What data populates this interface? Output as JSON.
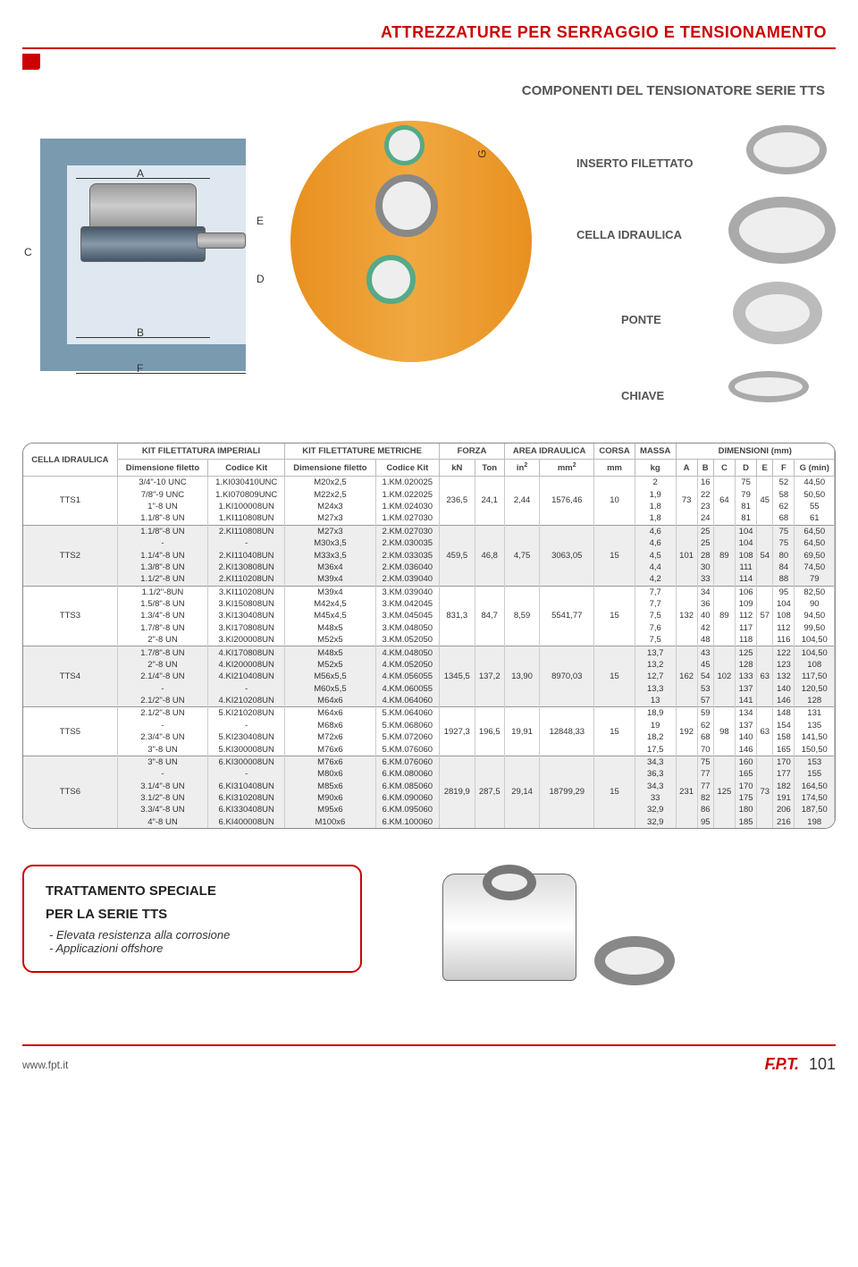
{
  "header": {
    "title": "ATTREZZATURE PER SERRAGGIO E TENSIONAMENTO"
  },
  "subtitle": "COMPONENTI DEL TENSIONATORE SERIE TTS",
  "diagram": {
    "dim_labels": {
      "A": "A",
      "B": "B",
      "C": "C",
      "D": "D",
      "E": "E",
      "F": "F",
      "G": "G"
    },
    "components": {
      "insert": "INSERTO FILETTATO",
      "cell": "CELLA IDRAULICA",
      "bridge": "PONTE",
      "key": "CHIAVE"
    }
  },
  "table": {
    "head1": {
      "cell": "CELLA IDRAULICA",
      "kit_imp": "KIT FILETTATURA IMPERIALI",
      "kit_met": "KIT FILETTATURE METRICHE",
      "force": "FORZA",
      "area": "AREA IDRAULICA",
      "stroke": "CORSA",
      "mass": "MASSA",
      "dims": "DIMENSIONI (mm)"
    },
    "head2": {
      "dim_fil": "Dimensione filetto",
      "cod_kit": "Codice Kit",
      "kN": "kN",
      "Ton": "Ton",
      "in2": "in",
      "mm2": "mm",
      "mm": "mm",
      "kg": "kg",
      "A": "A",
      "B": "B",
      "C": "C",
      "D": "D",
      "E": "E",
      "F": "F",
      "G": "G (min)"
    },
    "groups": [
      {
        "cell": "TTS1",
        "cls": "group-odd",
        "kN": "236,5",
        "Ton": "24,1",
        "in2": "2,44",
        "mm2": "1576,46",
        "stroke": "10",
        "A": "73",
        "C": "64",
        "E": "45",
        "rows": [
          [
            "3/4\"-10 UNC",
            "1.KI030410UNC",
            "M20x2,5",
            "1.KM.020025",
            "2",
            "16",
            "75",
            "52",
            "44,50"
          ],
          [
            "7/8\"-9 UNC",
            "1.KI070809UNC",
            "M22x2,5",
            "1.KM.022025",
            "1,9",
            "22",
            "79",
            "58",
            "50,50"
          ],
          [
            "1\"-8 UN",
            "1.KI100008UN",
            "M24x3",
            "1.KM.024030",
            "1,8",
            "23",
            "81",
            "62",
            "55"
          ],
          [
            "1.1/8\"-8 UN",
            "1.KI110808UN",
            "M27x3",
            "1.KM.027030",
            "1,8",
            "24",
            "81",
            "68",
            "61"
          ]
        ]
      },
      {
        "cell": "TTS2",
        "cls": "group-even",
        "kN": "459,5",
        "Ton": "46,8",
        "in2": "4,75",
        "mm2": "3063,05",
        "stroke": "15",
        "A": "101",
        "C": "89",
        "E": "54",
        "rows": [
          [
            "1.1/8\"-8 UN",
            "2.KI110808UN",
            "M27x3",
            "2.KM.027030",
            "4,6",
            "25",
            "104",
            "75",
            "64,50"
          ],
          [
            "-",
            "-",
            "M30x3,5",
            "2.KM.030035",
            "4,6",
            "25",
            "104",
            "75",
            "64,50"
          ],
          [
            "1.1/4\"-8 UN",
            "2.KI110408UN",
            "M33x3,5",
            "2.KM.033035",
            "4,5",
            "28",
            "108",
            "80",
            "69,50"
          ],
          [
            "1.3/8\"-8 UN",
            "2.KI130808UN",
            "M36x4",
            "2.KM.036040",
            "4,4",
            "30",
            "111",
            "84",
            "74,50"
          ],
          [
            "1.1/2\"-8 UN",
            "2.KI110208UN",
            "M39x4",
            "2.KM.039040",
            "4,2",
            "33",
            "114",
            "88",
            "79"
          ]
        ]
      },
      {
        "cell": "TTS3",
        "cls": "group-odd",
        "kN": "831,3",
        "Ton": "84,7",
        "in2": "8,59",
        "mm2": "5541,77",
        "stroke": "15",
        "A": "132",
        "C": "89",
        "E": "57",
        "rows": [
          [
            "1.1/2\"-8UN",
            "3.KI110208UN",
            "M39x4",
            "3.KM.039040",
            "7,7",
            "34",
            "106",
            "95",
            "82,50"
          ],
          [
            "1.5/8\"-8 UN",
            "3.KI150808UN",
            "M42x4,5",
            "3.KM.042045",
            "7,7",
            "36",
            "109",
            "104",
            "90"
          ],
          [
            "1.3/4\"-8 UN",
            "3.KI130408UN",
            "M45x4,5",
            "3.KM.045045",
            "7,5",
            "40",
            "112",
            "108",
            "94,50"
          ],
          [
            "1.7/8\"-8 UN",
            "3.KI170808UN",
            "M48x5",
            "3.KM.048050",
            "7,6",
            "42",
            "117",
            "112",
            "99,50"
          ],
          [
            "2\"-8 UN",
            "3.KI200008UN",
            "M52x5",
            "3.KM.052050",
            "7,5",
            "48",
            "118",
            "116",
            "104,50"
          ]
        ]
      },
      {
        "cell": "TTS4",
        "cls": "group-even",
        "kN": "1345,5",
        "Ton": "137,2",
        "in2": "13,90",
        "mm2": "8970,03",
        "stroke": "15",
        "A": "162",
        "C": "102",
        "E": "63",
        "rows": [
          [
            "1.7/8\"-8 UN",
            "4.KI170808UN",
            "M48x5",
            "4.KM.048050",
            "13,7",
            "43",
            "125",
            "122",
            "104,50"
          ],
          [
            "2\"-8 UN",
            "4.KI200008UN",
            "M52x5",
            "4.KM.052050",
            "13,2",
            "45",
            "128",
            "123",
            "108"
          ],
          [
            "2.1/4\"-8 UN",
            "4.KI210408UN",
            "M56x5,5",
            "4.KM.056055",
            "12,7",
            "54",
            "133",
            "132",
            "117,50"
          ],
          [
            "-",
            "-",
            "M60x5,5",
            "4.KM.060055",
            "13,3",
            "53",
            "137",
            "140",
            "120,50"
          ],
          [
            "2.1/2\"-8 UN",
            "4.KI210208UN",
            "M64x6",
            "4.KM.064060",
            "13",
            "57",
            "141",
            "146",
            "128"
          ]
        ]
      },
      {
        "cell": "TTS5",
        "cls": "group-odd",
        "kN": "1927,3",
        "Ton": "196,5",
        "in2": "19,91",
        "mm2": "12848,33",
        "stroke": "15",
        "A": "192",
        "C": "98",
        "E": "63",
        "rows": [
          [
            "2.1/2\"-8 UN",
            "5.KI210208UN",
            "M64x6",
            "5.KM.064060",
            "18,9",
            "59",
            "134",
            "148",
            "131"
          ],
          [
            "-",
            "-",
            "M68x6",
            "5.KM.068060",
            "19",
            "62",
            "137",
            "154",
            "135"
          ],
          [
            "2.3/4\"-8 UN",
            "5.KI230408UN",
            "M72x6",
            "5.KM.072060",
            "18,2",
            "68",
            "140",
            "158",
            "141,50"
          ],
          [
            "3\"-8 UN",
            "5.KI300008UN",
            "M76x6",
            "5.KM.076060",
            "17,5",
            "70",
            "146",
            "165",
            "150,50"
          ]
        ]
      },
      {
        "cell": "TTS6",
        "cls": "group-even",
        "kN": "2819,9",
        "Ton": "287,5",
        "in2": "29,14",
        "mm2": "18799,29",
        "stroke": "15",
        "A": "231",
        "C": "125",
        "E": "73",
        "rows": [
          [
            "3\"-8 UN",
            "6.KI300008UN",
            "M76x6",
            "6.KM.076060",
            "34,3",
            "75",
            "160",
            "170",
            "153"
          ],
          [
            "-",
            "-",
            "M80x6",
            "6.KM.080060",
            "36,3",
            "77",
            "165",
            "177",
            "155"
          ],
          [
            "3.1/4\"-8 UN",
            "6.KI310408UN",
            "M85x6",
            "6.KM.085060",
            "34,3",
            "77",
            "170",
            "182",
            "164,50"
          ],
          [
            "3.1/2\"-8 UN",
            "6.KI310208UN",
            "M90x6",
            "6.KM.090060",
            "33",
            "82",
            "175",
            "191",
            "174,50"
          ],
          [
            "3.3/4\"-8 UN",
            "6.KI330408UN",
            "M95x6",
            "6.KM.095060",
            "32,9",
            "86",
            "180",
            "206",
            "187,50"
          ],
          [
            "4\"-8 UN",
            "6.KI400008UN",
            "M100x6",
            "6.KM.100060",
            "32,9",
            "95",
            "185",
            "216",
            "198"
          ]
        ]
      }
    ]
  },
  "special": {
    "title1": "TRATTAMENTO SPECIALE",
    "title2": "PER LA SERIE TTS",
    "item1": "- Elevata resistenza alla corrosione",
    "item2": "-  Applicazioni offshore"
  },
  "footer": {
    "url": "www.fpt.it",
    "logo": "F.P.T.",
    "page": "101"
  }
}
